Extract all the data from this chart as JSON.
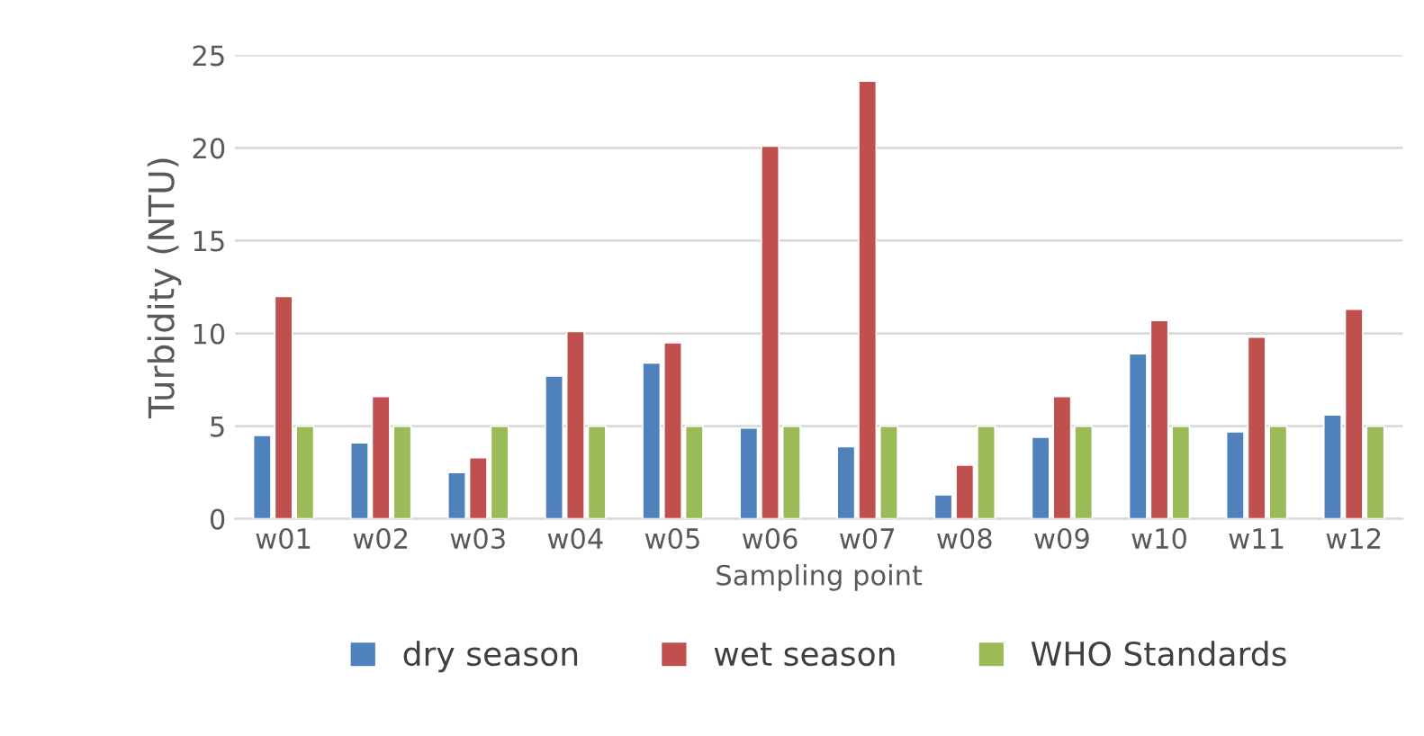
{
  "chart_data": {
    "type": "bar",
    "xlabel": "Sampling point",
    "ylabel": "Turbidity (NTU)",
    "categories": [
      "w01",
      "w02",
      "w03",
      "w04",
      "w05",
      "w06",
      "w07",
      "w08",
      "w09",
      "w10",
      "w11",
      "w12"
    ],
    "series": [
      {
        "name": "dry season",
        "color": "#4f81bd",
        "values": [
          4.5,
          4.1,
          2.5,
          7.7,
          8.4,
          4.9,
          3.9,
          1.3,
          4.4,
          8.9,
          4.7,
          5.6
        ]
      },
      {
        "name": "wet season",
        "color": "#c0504d",
        "values": [
          12.0,
          6.6,
          3.3,
          10.1,
          9.5,
          20.1,
          23.6,
          2.9,
          6.6,
          10.7,
          9.8,
          11.3
        ]
      },
      {
        "name": "WHO Standards",
        "color": "#9bbb59",
        "values": [
          5,
          5,
          5,
          5,
          5,
          5,
          5,
          5,
          5,
          5,
          5,
          5
        ]
      }
    ],
    "ylim": [
      0,
      25
    ],
    "yticks": [
      0,
      5,
      10,
      15,
      20,
      25
    ],
    "grid": "y",
    "legend": "bottom"
  }
}
